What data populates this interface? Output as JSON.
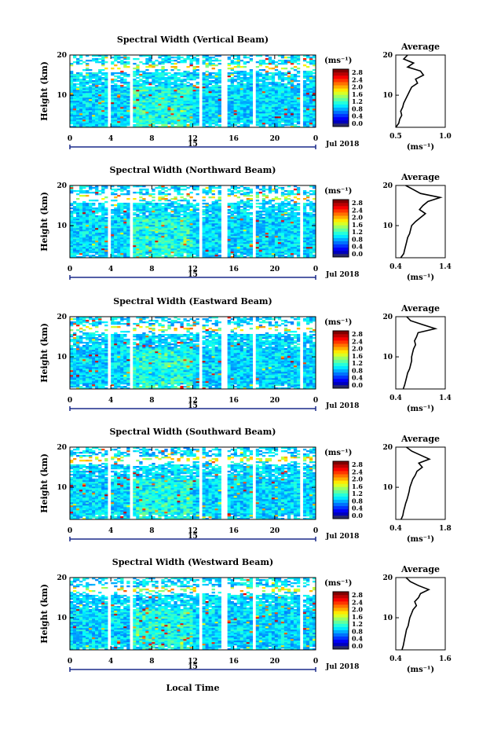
{
  "chart_data": {
    "type": "heatmap",
    "x_axis_label": "Local Time",
    "y_axis_label": "Height (km)",
    "x_ticks": [
      "0",
      "4",
      "8",
      "12",
      "16",
      "20",
      "0"
    ],
    "x_range": [
      0,
      24
    ],
    "y_ticks": [
      "10",
      "20"
    ],
    "y_range": [
      2,
      20
    ],
    "day_label": "15",
    "month_label": "Jul 2018",
    "colorbar_unit": "(ms⁻¹)",
    "colorbar_ticks": [
      "2.8",
      "2.4",
      "2.0",
      "1.6",
      "1.2",
      "0.8",
      "0.4",
      "0.0"
    ],
    "average_title": "Average",
    "average_unit": "(ms⁻¹)",
    "panels": [
      {
        "title": "Spectral Width (Vertical Beam)",
        "avg_xlim": [
          0.5,
          1.0
        ],
        "avg_xticks": [
          "0.5",
          "1.0"
        ],
        "average_profile": {
          "height_km": [
            2,
            3,
            4,
            5,
            6,
            7,
            8,
            9,
            10,
            11,
            12,
            13,
            14,
            15,
            16,
            17,
            18,
            19,
            20
          ],
          "width_ms": [
            0.5,
            0.53,
            0.54,
            0.56,
            0.55,
            0.57,
            0.58,
            0.6,
            0.62,
            0.64,
            0.66,
            0.72,
            0.7,
            0.78,
            0.75,
            0.62,
            0.68,
            0.58,
            0.62
          ]
        }
      },
      {
        "title": "Spectral Width (Northward Beam)",
        "avg_xlim": [
          0.4,
          1.4
        ],
        "avg_xticks": [
          "0.4",
          "1.4"
        ],
        "average_profile": {
          "height_km": [
            2,
            3,
            4,
            5,
            6,
            7,
            8,
            9,
            10,
            11,
            12,
            13,
            14,
            15,
            16,
            17,
            18,
            19,
            20
          ],
          "width_ms": [
            0.5,
            0.56,
            0.58,
            0.6,
            0.62,
            0.64,
            0.68,
            0.7,
            0.72,
            0.8,
            0.9,
            1.0,
            0.88,
            0.95,
            1.05,
            1.3,
            0.9,
            0.75,
            0.6
          ]
        }
      },
      {
        "title": "Spectral Width (Eastward Beam)",
        "avg_xlim": [
          0.4,
          1.4
        ],
        "avg_xticks": [
          "0.4",
          "1.4"
        ],
        "average_profile": {
          "height_km": [
            2,
            3,
            4,
            5,
            6,
            7,
            8,
            9,
            10,
            11,
            12,
            13,
            14,
            15,
            16,
            17,
            18,
            19,
            20
          ],
          "width_ms": [
            0.55,
            0.58,
            0.6,
            0.62,
            0.64,
            0.68,
            0.7,
            0.72,
            0.72,
            0.74,
            0.76,
            0.8,
            0.78,
            0.82,
            0.85,
            1.2,
            0.95,
            0.7,
            0.62
          ]
        }
      },
      {
        "title": "Spectral Width (Southward Beam)",
        "avg_xlim": [
          0.4,
          1.8
        ],
        "avg_xticks": [
          "0.4",
          "1.8"
        ],
        "average_profile": {
          "height_km": [
            2,
            3,
            4,
            5,
            6,
            7,
            8,
            9,
            10,
            11,
            12,
            13,
            14,
            15,
            16,
            17,
            18,
            19,
            20
          ],
          "width_ms": [
            0.55,
            0.6,
            0.62,
            0.65,
            0.68,
            0.72,
            0.75,
            0.78,
            0.8,
            0.84,
            0.88,
            0.95,
            1.0,
            1.15,
            1.05,
            1.35,
            1.1,
            0.85,
            0.7
          ]
        }
      },
      {
        "title": "Spectral Width (Westward Beam)",
        "avg_xlim": [
          0.4,
          1.6
        ],
        "avg_xticks": [
          "0.4",
          "1.6"
        ],
        "average_profile": {
          "height_km": [
            2,
            3,
            4,
            5,
            6,
            7,
            8,
            9,
            10,
            11,
            12,
            13,
            14,
            15,
            16,
            17,
            18,
            19,
            20
          ],
          "width_ms": [
            0.55,
            0.58,
            0.6,
            0.62,
            0.64,
            0.66,
            0.7,
            0.72,
            0.74,
            0.78,
            0.82,
            0.9,
            0.86,
            0.95,
            1.0,
            1.2,
            0.95,
            0.75,
            0.65
          ]
        }
      }
    ]
  },
  "colors": {
    "axis": "#000000",
    "background": "#ffffff"
  }
}
